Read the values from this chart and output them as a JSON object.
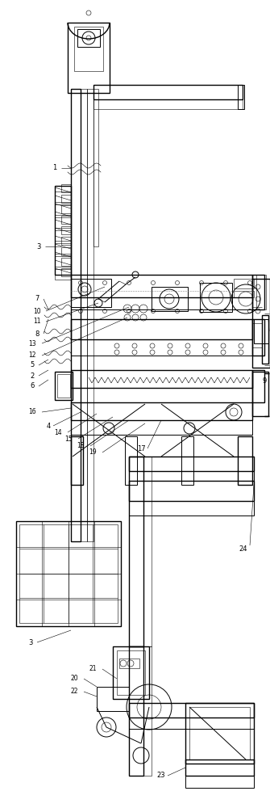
{
  "bg_color": "#ffffff",
  "line_color": "#000000",
  "fig_width": 3.35,
  "fig_height": 10.0,
  "dpi": 100,
  "xlim": [
    0,
    335
  ],
  "ylim": [
    0,
    1000
  ],
  "lw_main": 1.0,
  "lw_med": 0.7,
  "lw_thin": 0.4,
  "lw_thick": 1.4
}
